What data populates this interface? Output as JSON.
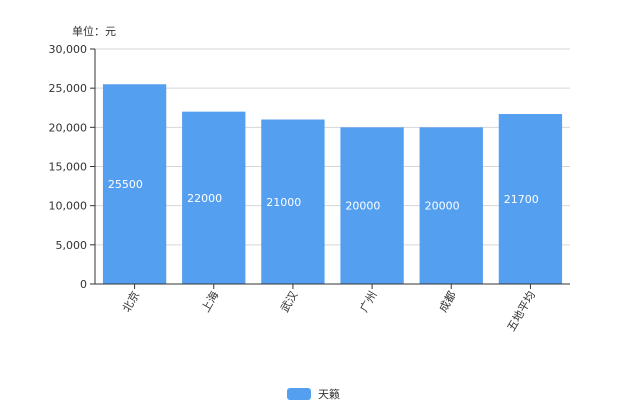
{
  "chart_data": {
    "type": "bar",
    "unit_label": "单位：元",
    "categories": [
      "北京",
      "上海",
      "武汉",
      "广州",
      "成都",
      "五地平均"
    ],
    "series": [
      {
        "name": "天籁",
        "values": [
          25500,
          22000,
          21000,
          20000,
          20000,
          21700
        ]
      }
    ],
    "data_labels": [
      "25500",
      "22000",
      "21000",
      "20000",
      "20000",
      "21700"
    ],
    "y_ticks": [
      0,
      5000,
      10000,
      15000,
      20000,
      25000,
      30000
    ],
    "y_tick_labels": [
      "0",
      "5,000",
      "10,000",
      "15,000",
      "20,000",
      "25,000",
      "30,000"
    ],
    "ylim": [
      0,
      30000
    ],
    "grid": true,
    "legend_position": "bottom-center",
    "bar_color": "#559ff1"
  }
}
